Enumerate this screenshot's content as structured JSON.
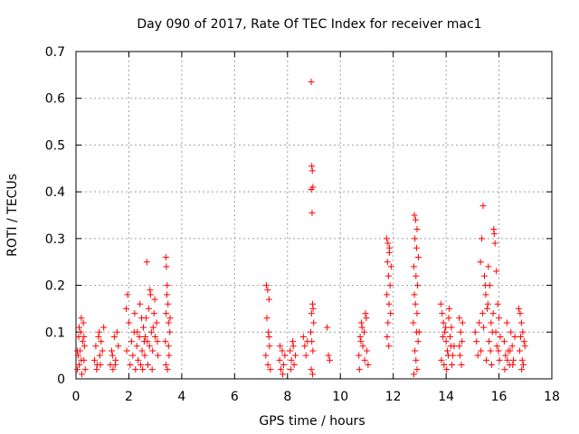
{
  "chart_data": {
    "type": "scatter",
    "title": "Day 090 of 2017, Rate Of TEC Index for receiver mac1",
    "xlabel": "GPS time / hours",
    "ylabel": "ROTI / TECUs",
    "xlim": [
      0,
      18
    ],
    "ylim": [
      0,
      0.7
    ],
    "xticks": [
      0,
      2,
      4,
      6,
      8,
      10,
      12,
      14,
      16,
      18
    ],
    "xtick_labels": [
      "0",
      "2",
      "4",
      "6",
      "8",
      "10",
      "12",
      "14",
      "16",
      "18"
    ],
    "yticks": [
      0,
      0.1,
      0.2,
      0.3,
      0.4,
      0.5,
      0.6,
      0.7
    ],
    "ytick_labels": [
      "0",
      "0.1",
      "0.2",
      "0.3",
      "0.4",
      "0.5",
      "0.6",
      "0.7"
    ],
    "grid": true,
    "legend": "none",
    "series": [
      {
        "name": "ROTI",
        "marker": "+",
        "color": "#ff0000",
        "points": [
          [
            0.05,
            0.02
          ],
          [
            0.08,
            0.05
          ],
          [
            0.1,
            0.09
          ],
          [
            0.12,
            0.03
          ],
          [
            0.15,
            0.06
          ],
          [
            0.18,
            0.1
          ],
          [
            0.2,
            0.13
          ],
          [
            0.22,
            0.01
          ],
          [
            0.25,
            0.08
          ],
          [
            0.28,
            0.12
          ],
          [
            0.3,
            0.04
          ],
          [
            0.32,
            0.07
          ],
          [
            0.35,
            0.02
          ],
          [
            0.05,
            0.06
          ],
          [
            0.12,
            0.11
          ],
          [
            0.2,
            0.04
          ],
          [
            0.3,
            0.09
          ],
          [
            0.7,
            0.04
          ],
          [
            0.75,
            0.07
          ],
          [
            0.8,
            0.03
          ],
          [
            0.85,
            0.09
          ],
          [
            0.9,
            0.05
          ],
          [
            0.95,
            0.08
          ],
          [
            1.0,
            0.06
          ],
          [
            0.78,
            0.02
          ],
          [
            0.88,
            0.1
          ],
          [
            0.92,
            0.03
          ],
          [
            1.05,
            0.11
          ],
          [
            1.3,
            0.03
          ],
          [
            1.35,
            0.06
          ],
          [
            1.4,
            0.02
          ],
          [
            1.45,
            0.09
          ],
          [
            1.5,
            0.04
          ],
          [
            1.55,
            0.1
          ],
          [
            1.6,
            0.07
          ],
          [
            1.38,
            0.05
          ],
          [
            1.48,
            0.03
          ],
          [
            1.9,
            0.15
          ],
          [
            1.95,
            0.18
          ],
          [
            2.0,
            0.12
          ],
          [
            1.92,
            0.06
          ],
          [
            2.05,
            0.03
          ],
          [
            2.1,
            0.08
          ],
          [
            2.15,
            0.05
          ],
          [
            2.2,
            0.1
          ],
          [
            2.25,
            0.02
          ],
          [
            2.3,
            0.07
          ],
          [
            2.35,
            0.04
          ],
          [
            2.4,
            0.09
          ],
          [
            2.45,
            0.03
          ],
          [
            2.5,
            0.06
          ],
          [
            2.55,
            0.11
          ],
          [
            2.6,
            0.05
          ],
          [
            2.65,
            0.13
          ],
          [
            2.7,
            0.08
          ],
          [
            2.75,
            0.15
          ],
          [
            2.8,
            0.19
          ],
          [
            2.85,
            0.1
          ],
          [
            2.9,
            0.06
          ],
          [
            2.95,
            0.14
          ],
          [
            3.0,
            0.09
          ],
          [
            3.05,
            0.12
          ],
          [
            3.1,
            0.05
          ],
          [
            2.82,
            0.18
          ],
          [
            2.68,
            0.25
          ],
          [
            2.72,
            0.03
          ],
          [
            2.88,
            0.02
          ],
          [
            2.58,
            0.08
          ],
          [
            2.98,
            0.17
          ],
          [
            3.08,
            0.08
          ],
          [
            2.42,
            0.16
          ],
          [
            2.52,
            0.02
          ],
          [
            2.62,
            0.09
          ],
          [
            2.78,
            0.07
          ],
          [
            2.92,
            0.11
          ],
          [
            2.48,
            0.13
          ],
          [
            2.32,
            0.1
          ],
          [
            2.22,
            0.14
          ],
          [
            3.4,
            0.26
          ],
          [
            3.42,
            0.24
          ],
          [
            3.45,
            0.2
          ],
          [
            3.48,
            0.16
          ],
          [
            3.5,
            0.12
          ],
          [
            3.38,
            0.08
          ],
          [
            3.52,
            0.05
          ],
          [
            3.46,
            0.02
          ],
          [
            3.41,
            0.14
          ],
          [
            3.55,
            0.1
          ],
          [
            3.44,
            0.18
          ],
          [
            3.5,
            0.07
          ],
          [
            3.4,
            0.03
          ],
          [
            3.56,
            0.13
          ],
          [
            7.2,
            0.2
          ],
          [
            7.25,
            0.19
          ],
          [
            7.3,
            0.17
          ],
          [
            7.22,
            0.13
          ],
          [
            7.28,
            0.1
          ],
          [
            7.32,
            0.07
          ],
          [
            7.18,
            0.05
          ],
          [
            7.26,
            0.03
          ],
          [
            7.35,
            0.02
          ],
          [
            7.3,
            0.09
          ],
          [
            7.7,
            0.04
          ],
          [
            7.75,
            0.02
          ],
          [
            7.8,
            0.06
          ],
          [
            7.85,
            0.03
          ],
          [
            7.9,
            0.05
          ],
          [
            7.72,
            0.07
          ],
          [
            7.82,
            0.01
          ],
          [
            8.1,
            0.06
          ],
          [
            8.15,
            0.04
          ],
          [
            8.2,
            0.08
          ],
          [
            8.25,
            0.03
          ],
          [
            8.3,
            0.05
          ],
          [
            8.12,
            0.02
          ],
          [
            8.22,
            0.07
          ],
          [
            8.6,
            0.09
          ],
          [
            8.65,
            0.07
          ],
          [
            8.7,
            0.05
          ],
          [
            8.75,
            0.08
          ],
          [
            8.9,
            0.635
          ],
          [
            8.92,
            0.455
          ],
          [
            8.94,
            0.445
          ],
          [
            8.96,
            0.41
          ],
          [
            8.9,
            0.405
          ],
          [
            8.93,
            0.355
          ],
          [
            8.95,
            0.16
          ],
          [
            8.97,
            0.15
          ],
          [
            8.91,
            0.14
          ],
          [
            8.99,
            0.12
          ],
          [
            8.88,
            0.1
          ],
          [
            8.92,
            0.08
          ],
          [
            8.96,
            0.06
          ],
          [
            8.9,
            0.02
          ],
          [
            8.95,
            0.01
          ],
          [
            9.5,
            0.11
          ],
          [
            9.55,
            0.05
          ],
          [
            9.6,
            0.04
          ],
          [
            10.7,
            0.05
          ],
          [
            10.75,
            0.09
          ],
          [
            10.8,
            0.12
          ],
          [
            10.85,
            0.07
          ],
          [
            10.9,
            0.1
          ],
          [
            10.95,
            0.14
          ],
          [
            11.0,
            0.06
          ],
          [
            11.05,
            0.03
          ],
          [
            10.72,
            0.02
          ],
          [
            10.82,
            0.11
          ],
          [
            10.92,
            0.04
          ],
          [
            10.78,
            0.08
          ],
          [
            10.98,
            0.13
          ],
          [
            11.75,
            0.3
          ],
          [
            11.8,
            0.29
          ],
          [
            11.85,
            0.27
          ],
          [
            11.78,
            0.25
          ],
          [
            11.82,
            0.22
          ],
          [
            11.88,
            0.2
          ],
          [
            11.76,
            0.18
          ],
          [
            11.84,
            0.16
          ],
          [
            11.9,
            0.14
          ],
          [
            11.8,
            0.12
          ],
          [
            11.77,
            0.09
          ],
          [
            11.83,
            0.07
          ],
          [
            11.86,
            0.28
          ],
          [
            11.92,
            0.24
          ],
          [
            12.8,
            0.35
          ],
          [
            12.85,
            0.34
          ],
          [
            12.9,
            0.32
          ],
          [
            12.82,
            0.3
          ],
          [
            12.88,
            0.28
          ],
          [
            12.95,
            0.26
          ],
          [
            12.78,
            0.24
          ],
          [
            12.86,
            0.22
          ],
          [
            12.92,
            0.2
          ],
          [
            12.8,
            0.18
          ],
          [
            12.84,
            0.16
          ],
          [
            12.9,
            0.14
          ],
          [
            12.76,
            0.12
          ],
          [
            12.88,
            0.1
          ],
          [
            12.94,
            0.08
          ],
          [
            12.82,
            0.06
          ],
          [
            12.86,
            0.04
          ],
          [
            12.9,
            0.02
          ],
          [
            12.78,
            0.01
          ],
          [
            12.98,
            0.1
          ],
          [
            13.8,
            0.16
          ],
          [
            13.85,
            0.14
          ],
          [
            13.9,
            0.12
          ],
          [
            13.95,
            0.1
          ],
          [
            14.0,
            0.08
          ],
          [
            14.05,
            0.06
          ],
          [
            14.1,
            0.13
          ],
          [
            14.15,
            0.09
          ],
          [
            14.2,
            0.11
          ],
          [
            14.25,
            0.05
          ],
          [
            14.3,
            0.07
          ],
          [
            13.82,
            0.04
          ],
          [
            13.92,
            0.03
          ],
          [
            14.02,
            0.02
          ],
          [
            14.12,
            0.15
          ],
          [
            14.22,
            0.03
          ],
          [
            13.88,
            0.09
          ],
          [
            13.98,
            0.11
          ],
          [
            14.08,
            0.05
          ],
          [
            14.18,
            0.07
          ],
          [
            14.5,
            0.13
          ],
          [
            14.55,
            0.1
          ],
          [
            14.6,
            0.08
          ],
          [
            14.52,
            0.05
          ],
          [
            14.58,
            0.03
          ],
          [
            14.62,
            0.12
          ],
          [
            14.5,
            0.07
          ],
          [
            15.1,
            0.1
          ],
          [
            15.15,
            0.08
          ],
          [
            15.2,
            0.05
          ],
          [
            15.25,
            0.12
          ],
          [
            15.3,
            0.25
          ],
          [
            15.35,
            0.3
          ],
          [
            15.4,
            0.37
          ],
          [
            15.45,
            0.22
          ],
          [
            15.5,
            0.18
          ],
          [
            15.55,
            0.15
          ],
          [
            15.6,
            0.24
          ],
          [
            15.65,
            0.2
          ],
          [
            15.7,
            0.12
          ],
          [
            15.75,
            0.1
          ],
          [
            15.8,
            0.32
          ],
          [
            15.82,
            0.31
          ],
          [
            15.85,
            0.29
          ],
          [
            15.9,
            0.23
          ],
          [
            15.95,
            0.16
          ],
          [
            16.0,
            0.13
          ],
          [
            16.05,
            0.09
          ],
          [
            15.32,
            0.06
          ],
          [
            15.42,
            0.11
          ],
          [
            15.52,
            0.04
          ],
          [
            15.62,
            0.08
          ],
          [
            15.72,
            0.03
          ],
          [
            15.92,
            0.07
          ],
          [
            16.02,
            0.04
          ],
          [
            15.38,
            0.14
          ],
          [
            15.48,
            0.2
          ],
          [
            15.58,
            0.16
          ],
          [
            15.68,
            0.06
          ],
          [
            15.78,
            0.14
          ],
          [
            15.88,
            0.1
          ],
          [
            15.98,
            0.06
          ],
          [
            16.2,
            0.08
          ],
          [
            16.25,
            0.05
          ],
          [
            16.3,
            0.12
          ],
          [
            16.35,
            0.06
          ],
          [
            16.4,
            0.03
          ],
          [
            16.45,
            0.1
          ],
          [
            16.5,
            0.07
          ],
          [
            16.55,
            0.04
          ],
          [
            16.6,
            0.09
          ],
          [
            16.22,
            0.02
          ],
          [
            16.32,
            0.04
          ],
          [
            16.42,
            0.06
          ],
          [
            16.52,
            0.03
          ],
          [
            16.75,
            0.15
          ],
          [
            16.8,
            0.14
          ],
          [
            16.85,
            0.12
          ],
          [
            16.9,
            0.1
          ],
          [
            16.95,
            0.08
          ],
          [
            16.78,
            0.06
          ],
          [
            16.88,
            0.04
          ],
          [
            16.92,
            0.03
          ],
          [
            16.98,
            0.07
          ],
          [
            16.82,
            0.09
          ],
          [
            16.86,
            0.02
          ]
        ]
      }
    ]
  }
}
